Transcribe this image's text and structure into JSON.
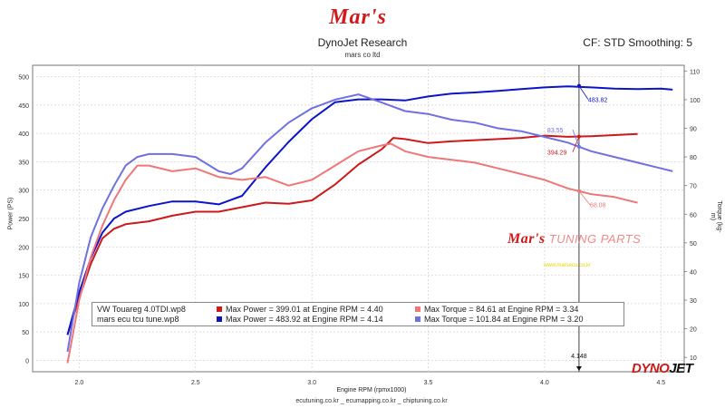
{
  "header": {
    "logo_text": "Mar's",
    "title": "DynoJet Research",
    "subtitle": "mars co ltd",
    "cf_info": "CF: STD Smoothing: 5"
  },
  "footer": "ecutuning.co.kr _ ecumapping.co.kr _ chiptuning.co.kr",
  "watermark": {
    "brand": "Mar's",
    "text": "TUNING PARTS",
    "url": "www.marsecu.co.kr",
    "dynojet_a": "DYNO",
    "dynojet_b": "JET"
  },
  "colors": {
    "red_dark": "#cc1a1a",
    "red_light": "#ee7777",
    "blue_dark": "#0a14c8",
    "blue_light": "#7070e0",
    "cursor": "#000000"
  },
  "legend": [
    {
      "file": "VW Touareg 4.0TDI.wp8",
      "power": {
        "text": "Max Power = 399.01 at Engine RPM = 4.40",
        "color": "#cc1a1a"
      },
      "torque": {
        "text": "Max Torque = 84.61 at Engine RPM = 3.34",
        "color": "#ee7777"
      }
    },
    {
      "file": "mars ecu tcu tune.wp8",
      "power": {
        "text": "Max Power = 483.92 at Engine RPM = 4.14",
        "color": "#0a14c8"
      },
      "torque": {
        "text": "Max Torque = 101.84 at Engine RPM = 3.20",
        "color": "#7070e0"
      }
    }
  ],
  "chart_data": {
    "type": "line",
    "xlabel": "Engine RPM (rpmx1000)",
    "ylabel": "Power (PS)",
    "ylabel_right": "Torque (kg-m)",
    "xlim": [
      1.8,
      4.6
    ],
    "ylim": [
      -20,
      520
    ],
    "ylim_right": [
      5,
      112
    ],
    "x_ticks": [
      "2.0",
      "2.5",
      "3.0",
      "3.5",
      "4.0",
      "4.5"
    ],
    "y_ticks": [
      0,
      50,
      100,
      150,
      200,
      250,
      300,
      350,
      400,
      450,
      500
    ],
    "y_right_ticks": [
      10,
      20,
      30,
      40,
      50,
      60,
      70,
      80,
      90,
      100,
      110
    ],
    "grid": true,
    "cursor": {
      "x": 4.148,
      "label": "4.148"
    },
    "annotations": [
      {
        "text": "483.82",
        "series": "mars ecu tcu tune.wp8 Max Power",
        "x": 4.148,
        "y": 483.82,
        "axis": "left"
      },
      {
        "text": "394.29",
        "series": "VW Touareg 4.0TDI.wp8 Max Power",
        "x": 4.148,
        "y": 394.29,
        "axis": "left"
      },
      {
        "text": "83.55",
        "series": "mars ecu tcu tune.wp8 Max Torque",
        "x": 4.148,
        "y": 83.55,
        "axis": "right"
      },
      {
        "text": "68.08",
        "series": "VW Touareg 4.0TDI.wp8 Max Torque",
        "x": 4.148,
        "y": 68.08,
        "axis": "right"
      }
    ],
    "series": [
      {
        "name": "VW Touareg 4.0TDI.wp8 Max Power",
        "axis": "left",
        "color": "#cc1a1a",
        "x": [
          1.95,
          2.0,
          2.05,
          2.1,
          2.15,
          2.2,
          2.3,
          2.4,
          2.5,
          2.6,
          2.7,
          2.8,
          2.9,
          3.0,
          3.1,
          3.2,
          3.3,
          3.35,
          3.4,
          3.5,
          3.6,
          3.7,
          3.8,
          3.9,
          4.0,
          4.1,
          4.2,
          4.3,
          4.4
        ],
        "y": [
          45,
          110,
          170,
          215,
          232,
          240,
          245,
          255,
          262,
          262,
          270,
          278,
          276,
          282,
          310,
          345,
          372,
          392,
          390,
          383,
          386,
          388,
          390,
          392,
          396,
          394,
          395,
          397,
          399
        ]
      },
      {
        "name": "mars ecu tcu tune.wp8 Max Power",
        "axis": "left",
        "color": "#0a14c8",
        "x": [
          1.95,
          2.0,
          2.05,
          2.1,
          2.15,
          2.2,
          2.3,
          2.4,
          2.5,
          2.6,
          2.7,
          2.8,
          2.9,
          3.0,
          3.1,
          3.2,
          3.3,
          3.4,
          3.5,
          3.6,
          3.7,
          3.8,
          3.9,
          4.0,
          4.1,
          4.2,
          4.3,
          4.4,
          4.5,
          4.55
        ],
        "y": [
          45,
          120,
          180,
          225,
          250,
          262,
          272,
          280,
          280,
          275,
          290,
          340,
          385,
          425,
          455,
          460,
          460,
          458,
          465,
          470,
          472,
          475,
          478,
          481,
          483,
          481,
          479,
          478,
          479,
          477
        ]
      },
      {
        "name": "VW Touareg 4.0TDI.wp8 Max Torque",
        "axis": "right",
        "color": "#ee7777",
        "x": [
          1.95,
          2.0,
          2.05,
          2.1,
          2.15,
          2.2,
          2.25,
          2.3,
          2.4,
          2.5,
          2.6,
          2.7,
          2.8,
          2.9,
          3.0,
          3.1,
          3.2,
          3.3,
          3.34,
          3.4,
          3.5,
          3.6,
          3.7,
          3.8,
          3.9,
          4.0,
          4.1,
          4.2,
          4.3,
          4.4
        ],
        "y": [
          8,
          30,
          45,
          56,
          65,
          72,
          77,
          77,
          75,
          76,
          73,
          72,
          73,
          70,
          72,
          77,
          82,
          84,
          84.61,
          82,
          80,
          79,
          78,
          76,
          74,
          72,
          69,
          67,
          66,
          64
        ]
      },
      {
        "name": "mars ecu tcu tune.wp8 Max Torque",
        "axis": "right",
        "color": "#7070e0",
        "x": [
          1.95,
          2.0,
          2.05,
          2.1,
          2.15,
          2.2,
          2.25,
          2.3,
          2.4,
          2.5,
          2.6,
          2.65,
          2.7,
          2.8,
          2.9,
          3.0,
          3.1,
          3.2,
          3.3,
          3.4,
          3.5,
          3.6,
          3.7,
          3.8,
          3.9,
          4.0,
          4.1,
          4.2,
          4.3,
          4.4,
          4.5,
          4.55
        ],
        "y": [
          12,
          36,
          52,
          62,
          70,
          77,
          80,
          81,
          81,
          80,
          75,
          74,
          76,
          85,
          92,
          97,
          100,
          101.84,
          99,
          96,
          95,
          93,
          92,
          90,
          89,
          87,
          85,
          82,
          80,
          78,
          76,
          75
        ]
      }
    ]
  }
}
